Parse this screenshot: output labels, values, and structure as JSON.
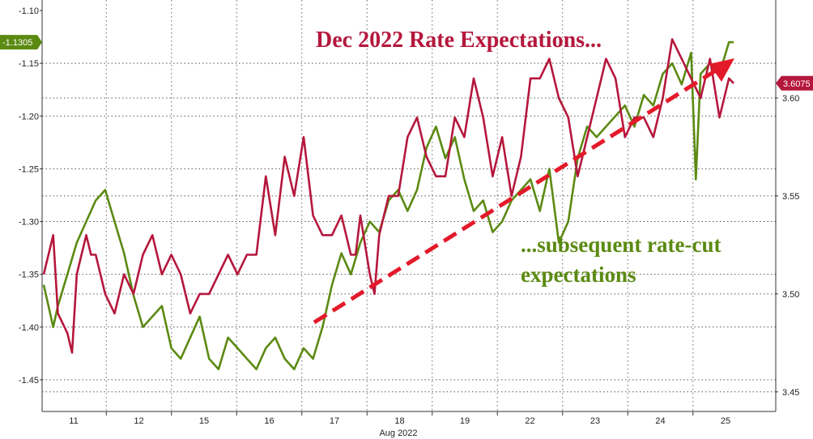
{
  "chart_data": {
    "type": "line",
    "title": "",
    "xlabel": "Aug 2022",
    "x_ticks": [
      "11",
      "12",
      "15",
      "16",
      "17",
      "18",
      "19",
      "22",
      "23",
      "24",
      "25"
    ],
    "left_axis": {
      "ylim": [
        -1.48,
        -1.09
      ],
      "ticks": [
        "-1.10",
        "-1.15",
        "-1.20",
        "-1.25",
        "-1.30",
        "-1.35",
        "-1.40",
        "-1.45"
      ],
      "tick_values": [
        -1.1,
        -1.15,
        -1.2,
        -1.25,
        -1.3,
        -1.35,
        -1.4,
        -1.45
      ]
    },
    "right_axis": {
      "ylim": [
        3.44,
        3.65
      ],
      "ticks": [
        "3.60",
        "3.55",
        "3.50",
        "3.45"
      ],
      "tick_values": [
        3.6,
        3.55,
        3.5,
        3.45
      ]
    },
    "grid": true,
    "series": [
      {
        "name": "",
        "color": "#5b8a12",
        "axis": "left",
        "last_label": "-1.1305",
        "x": [
          10.5,
          10.7,
          10.8,
          11.0,
          11.2,
          11.4,
          11.6,
          11.8,
          12.0,
          12.2,
          12.4,
          12.6,
          12.8,
          13.0,
          13.2,
          13.4,
          13.6,
          13.8,
          14.0,
          14.2,
          14.4,
          14.6,
          14.8,
          15.0,
          15.2,
          15.4,
          15.6,
          15.8,
          16.0,
          16.2,
          16.4,
          16.6,
          16.8,
          17.0,
          17.2,
          17.4,
          17.6,
          17.8,
          18.0,
          18.2,
          18.4,
          18.6,
          18.8,
          19.0,
          19.2,
          19.4,
          19.6,
          19.8,
          20.0,
          20.2,
          20.4,
          20.6,
          20.8,
          21.0,
          21.2,
          21.4,
          21.6,
          21.8,
          22.0,
          22.2,
          22.4,
          22.6,
          22.8,
          23.0,
          23.2,
          23.4,
          23.6,
          23.8,
          24.0,
          24.2,
          24.3,
          24.4,
          24.6,
          24.8,
          25.0,
          25.1
        ],
        "values": [
          -1.36,
          -1.4,
          -1.38,
          -1.35,
          -1.32,
          -1.3,
          -1.28,
          -1.27,
          -1.3,
          -1.33,
          -1.37,
          -1.4,
          -1.39,
          -1.38,
          -1.42,
          -1.43,
          -1.41,
          -1.39,
          -1.43,
          -1.44,
          -1.41,
          -1.42,
          -1.43,
          -1.44,
          -1.42,
          -1.41,
          -1.43,
          -1.44,
          -1.42,
          -1.43,
          -1.4,
          -1.36,
          -1.33,
          -1.35,
          -1.32,
          -1.3,
          -1.31,
          -1.28,
          -1.27,
          -1.29,
          -1.27,
          -1.23,
          -1.21,
          -1.24,
          -1.22,
          -1.26,
          -1.29,
          -1.28,
          -1.31,
          -1.3,
          -1.28,
          -1.27,
          -1.26,
          -1.29,
          -1.25,
          -1.32,
          -1.3,
          -1.24,
          -1.21,
          -1.22,
          -1.21,
          -1.2,
          -1.19,
          -1.21,
          -1.18,
          -1.19,
          -1.16,
          -1.15,
          -1.17,
          -1.14,
          -1.26,
          -1.16,
          -1.15,
          -1.16,
          -1.13,
          -1.13
        ]
      },
      {
        "name": "",
        "color": "#b5173c",
        "axis": "right",
        "last_label": "3.6075",
        "x": [
          10.5,
          10.7,
          10.8,
          11.0,
          11.1,
          11.2,
          11.4,
          11.5,
          11.6,
          11.8,
          12.0,
          12.2,
          12.4,
          12.6,
          12.8,
          13.0,
          13.2,
          13.4,
          13.6,
          13.8,
          14.0,
          14.2,
          14.4,
          14.6,
          14.8,
          15.0,
          15.2,
          15.4,
          15.6,
          15.8,
          16.0,
          16.2,
          16.4,
          16.6,
          16.8,
          17.0,
          17.1,
          17.2,
          17.4,
          17.5,
          17.6,
          17.8,
          18.0,
          18.2,
          18.4,
          18.6,
          18.8,
          19.0,
          19.2,
          19.4,
          19.6,
          19.8,
          20.0,
          20.2,
          20.4,
          20.6,
          20.8,
          21.0,
          21.2,
          21.4,
          21.6,
          21.8,
          22.0,
          22.2,
          22.4,
          22.6,
          22.8,
          23.0,
          23.2,
          23.4,
          23.6,
          23.8,
          24.0,
          24.2,
          24.4,
          24.6,
          24.8,
          25.0,
          25.1
        ],
        "values": [
          3.51,
          3.53,
          3.49,
          3.48,
          3.47,
          3.51,
          3.53,
          3.52,
          3.52,
          3.5,
          3.49,
          3.51,
          3.5,
          3.52,
          3.53,
          3.51,
          3.52,
          3.51,
          3.49,
          3.5,
          3.5,
          3.51,
          3.52,
          3.51,
          3.52,
          3.52,
          3.56,
          3.53,
          3.57,
          3.55,
          3.58,
          3.54,
          3.53,
          3.53,
          3.54,
          3.52,
          3.52,
          3.54,
          3.51,
          3.5,
          3.53,
          3.55,
          3.55,
          3.58,
          3.59,
          3.57,
          3.56,
          3.56,
          3.59,
          3.58,
          3.61,
          3.59,
          3.56,
          3.58,
          3.55,
          3.57,
          3.61,
          3.61,
          3.62,
          3.6,
          3.59,
          3.56,
          3.58,
          3.6,
          3.62,
          3.61,
          3.58,
          3.59,
          3.59,
          3.58,
          3.6,
          3.63,
          3.62,
          3.61,
          3.6,
          3.62,
          3.59,
          3.61,
          3.6075
        ]
      }
    ],
    "annotations": {
      "headline": "Dec 2022 Rate Expectations...",
      "subtext_line1": "...subsequent rate-cut",
      "subtext_line2": "expectations",
      "arrow_color": "#e31a2a"
    }
  }
}
